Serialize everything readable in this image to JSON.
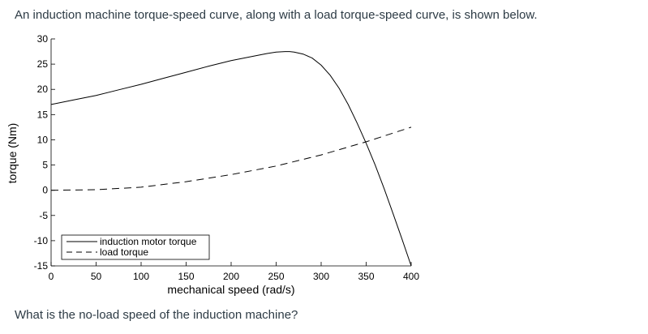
{
  "question": {
    "intro": "An induction machine torque-speed curve, along with a load torque-speed curve, is shown below.",
    "prompt": "What is the no-load speed of the induction machine?"
  },
  "chart_data": {
    "type": "line",
    "title": "",
    "xlabel": "mechanical speed (rad/s)",
    "ylabel": "torque (Nm)",
    "xlim": [
      0,
      400
    ],
    "ylim": [
      -15,
      30
    ],
    "xticks": [
      0,
      50,
      100,
      150,
      200,
      250,
      300,
      350,
      400
    ],
    "yticks": [
      30,
      25,
      20,
      15,
      10,
      5,
      0,
      -5,
      -10,
      -15
    ],
    "grid": false,
    "legend_position": "bottom-left",
    "series": [
      {
        "name": "induction motor torque",
        "style": "solid",
        "x": [
          0,
          25,
          50,
          75,
          100,
          125,
          150,
          175,
          200,
          225,
          240,
          250,
          260,
          265,
          270,
          280,
          290,
          300,
          310,
          320,
          330,
          340,
          350,
          360,
          370,
          380,
          390,
          400
        ],
        "y": [
          17,
          17.9,
          18.8,
          19.9,
          21,
          22.2,
          23.4,
          24.6,
          25.7,
          26.6,
          27.1,
          27.4,
          27.5,
          27.5,
          27.4,
          27,
          26.2,
          24.8,
          22.8,
          20.2,
          17,
          13.3,
          9.3,
          5,
          0.3,
          -4.7,
          -9.8,
          -15
        ]
      },
      {
        "name": "load torque",
        "style": "dashed",
        "x": [
          0,
          50,
          100,
          150,
          200,
          250,
          300,
          350,
          400
        ],
        "y": [
          0,
          0.1,
          0.6,
          1.7,
          3.1,
          4.8,
          7.0,
          9.6,
          12.5
        ]
      }
    ]
  }
}
